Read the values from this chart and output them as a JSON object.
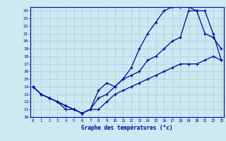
{
  "xlabel": "Graphe des températures (°c)",
  "bg_color": "#cce8f0",
  "line_color": "#0000aa",
  "grid_color": "#aaccdd",
  "xlim": [
    0,
    23
  ],
  "ylim": [
    10,
    24.5
  ],
  "yticks": [
    10,
    11,
    12,
    13,
    14,
    15,
    16,
    17,
    18,
    19,
    20,
    21,
    22,
    23,
    24
  ],
  "xticks": [
    0,
    1,
    2,
    3,
    4,
    5,
    6,
    7,
    8,
    9,
    10,
    11,
    12,
    13,
    14,
    15,
    16,
    17,
    18,
    19,
    20,
    21,
    22,
    23
  ],
  "curve1_x": [
    0,
    1,
    2,
    3,
    4,
    5,
    6,
    7,
    8,
    9,
    10,
    11,
    12,
    13,
    14,
    15,
    16,
    17,
    18,
    19,
    20,
    21,
    22,
    23
  ],
  "curve1_y": [
    14,
    13,
    12.5,
    12,
    11.5,
    11,
    10.5,
    11,
    13.5,
    14.5,
    14,
    15,
    15.5,
    16,
    17.5,
    18,
    19,
    20,
    20.5,
    24,
    24,
    24,
    21,
    17.5
  ],
  "curve2_x": [
    0,
    1,
    2,
    3,
    4,
    5,
    6,
    7,
    8,
    9,
    10,
    11,
    12,
    13,
    14,
    15,
    16,
    17,
    18,
    19,
    20,
    21,
    22,
    23
  ],
  "curve2_y": [
    14,
    13,
    12.5,
    12,
    11,
    11,
    10.5,
    11,
    12.5,
    13,
    14,
    15,
    16.5,
    19,
    21,
    22.5,
    24,
    24.5,
    24.5,
    24.5,
    24,
    21,
    20.5,
    19
  ],
  "curve3_x": [
    0,
    1,
    2,
    3,
    4,
    5,
    6,
    7,
    8,
    9,
    10,
    11,
    12,
    13,
    14,
    15,
    16,
    17,
    18,
    19,
    20,
    21,
    22,
    23
  ],
  "curve3_y": [
    14,
    13,
    12.5,
    12,
    11.5,
    11,
    10.5,
    11,
    11,
    12,
    13,
    13.5,
    14,
    14.5,
    15,
    15.5,
    16,
    16.5,
    17,
    17,
    17,
    17.5,
    18,
    17.5
  ]
}
